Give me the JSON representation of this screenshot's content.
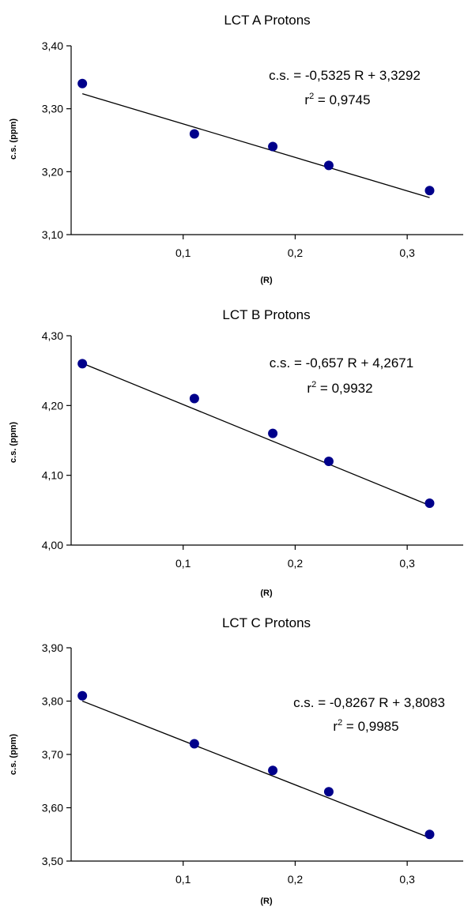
{
  "chart_data": [
    {
      "type": "scatter",
      "title": "LCT A Protons",
      "xlabel": "(R)",
      "ylabel": "c.s. (ppm)",
      "xlim": [
        0,
        0.35
      ],
      "ylim": [
        3.1,
        3.4
      ],
      "xticks": [
        "0,1",
        "0,2",
        "0,3"
      ],
      "yticks": [
        "3,10",
        "3,20",
        "3,30",
        "3,40"
      ],
      "grid": false,
      "x": [
        0.01,
        0.11,
        0.18,
        0.23,
        0.32
      ],
      "y": [
        3.34,
        3.26,
        3.24,
        3.21,
        3.17
      ],
      "fit": {
        "slope": -0.5325,
        "intercept": 3.3292
      },
      "equation": "c.s. = -0,5325 R + 3,3292",
      "r2_label": "r",
      "r2_sup": "2",
      "r2_value": " = 0,9745"
    },
    {
      "type": "scatter",
      "title": "LCT B Protons",
      "xlabel": "(R)",
      "ylabel": "c.s. (ppm)",
      "xlim": [
        0,
        0.35
      ],
      "ylim": [
        4.0,
        4.3
      ],
      "xticks": [
        "0,1",
        "0,2",
        "0,3"
      ],
      "yticks": [
        "4,00",
        "4,10",
        "4,20",
        "4,30"
      ],
      "grid": false,
      "x": [
        0.01,
        0.11,
        0.18,
        0.23,
        0.32
      ],
      "y": [
        4.26,
        4.21,
        4.16,
        4.12,
        4.06
      ],
      "fit": {
        "slope": -0.657,
        "intercept": 4.2671
      },
      "equation": "c.s. = -0,657 R + 4,2671",
      "r2_label": "r",
      "r2_sup": "2",
      "r2_value": " = 0,9932"
    },
    {
      "type": "scatter",
      "title": "LCT C Protons",
      "xlabel": "(R)",
      "ylabel": "c.s. (ppm)",
      "xlim": [
        0,
        0.35
      ],
      "ylim": [
        3.5,
        3.9
      ],
      "xticks": [
        "0,1",
        "0,2",
        "0,3"
      ],
      "yticks": [
        "3,50",
        "3,60",
        "3,70",
        "3,80",
        "3,90"
      ],
      "grid": false,
      "x": [
        0.01,
        0.11,
        0.18,
        0.23,
        0.32
      ],
      "y": [
        3.81,
        3.72,
        3.67,
        3.63,
        3.55
      ],
      "fit": {
        "slope": -0.8267,
        "intercept": 3.8083
      },
      "equation": "c.s. = -0,8267 R + 3,8083",
      "r2_label": "r",
      "r2_sup": "2",
      "r2_value": " = 0,9985"
    }
  ],
  "colors": {
    "marker": "#00008b",
    "line": "#000000",
    "axis": "#000000"
  }
}
